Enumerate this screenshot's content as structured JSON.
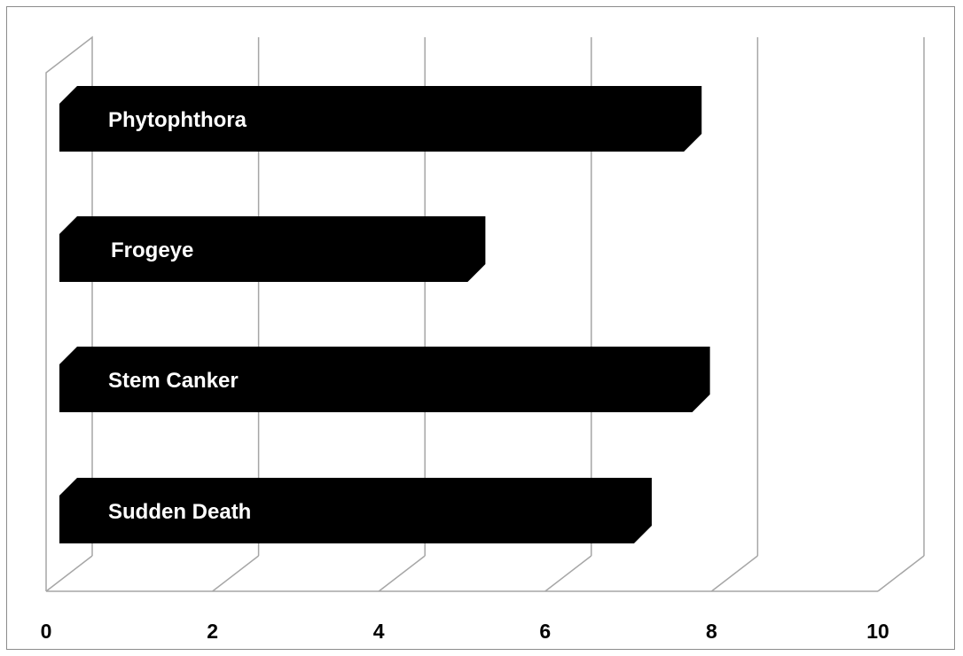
{
  "chart_data": {
    "type": "bar",
    "orientation": "horizontal",
    "style": "3d",
    "categories": [
      "Sudden Death",
      "Stem Canker",
      "Frogeye",
      "Phytophthora"
    ],
    "values": [
      7.1,
      7.8,
      5.1,
      7.7
    ],
    "title": "",
    "xlabel": "",
    "ylabel": "",
    "xlim": [
      0,
      10
    ],
    "x_ticks": [
      "0",
      "2",
      "4",
      "6",
      "8",
      "10"
    ],
    "grid": true,
    "legend": "none",
    "bar_color": "#000000",
    "label_color": "#ffffff",
    "grid_color": "#a6a6a6"
  }
}
